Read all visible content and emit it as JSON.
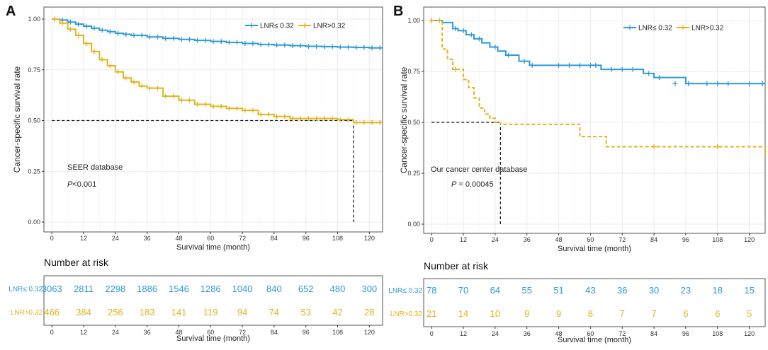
{
  "colors": {
    "low": "#2b9bd6",
    "high": "#e3b21c",
    "grid": "#ebebeb",
    "axis": "#333333",
    "text": "#222222",
    "panel_border": "#555555"
  },
  "chart_data": [
    {
      "type": "line",
      "panel_label": "A",
      "ylabel": "Cancer-specific survival rate",
      "xlabel": "Survival time (month)",
      "x_ticks": [
        0,
        12,
        24,
        36,
        48,
        60,
        72,
        84,
        96,
        108,
        120
      ],
      "x_tick_labels": [
        "0",
        "12",
        "24",
        "36",
        "48",
        "60",
        "72",
        "84",
        "96",
        "108",
        "120"
      ],
      "y_ticks": [
        0,
        0.25,
        0.5,
        0.75,
        1.0
      ],
      "y_tick_labels": [
        "0.00",
        "0.25",
        "0.50",
        "0.75",
        "1.00"
      ],
      "xlim": [
        0,
        125
      ],
      "ylim": [
        0,
        1.0
      ],
      "legend": [
        "LNR≤ 0.32",
        "LNR>0.32"
      ],
      "legend_position": "top-right",
      "annotations": {
        "database": "SEER database",
        "p_label": "P",
        "p_value": "<0.001"
      },
      "median_line": {
        "x": 114,
        "y": 0.5
      },
      "series": [
        {
          "name": "LNR≤ 0.32",
          "step": true,
          "x": [
            0,
            3,
            6,
            9,
            12,
            15,
            18,
            21,
            24,
            27,
            30,
            36,
            42,
            48,
            54,
            60,
            66,
            72,
            78,
            84,
            90,
            96,
            102,
            108,
            114,
            120,
            125
          ],
          "y": [
            1.0,
            0.995,
            0.985,
            0.975,
            0.965,
            0.955,
            0.945,
            0.938,
            0.93,
            0.925,
            0.92,
            0.912,
            0.905,
            0.9,
            0.895,
            0.89,
            0.885,
            0.88,
            0.875,
            0.872,
            0.869,
            0.866,
            0.864,
            0.862,
            0.86,
            0.858,
            0.857
          ],
          "censor_step": 3
        },
        {
          "name": "LNR>0.32",
          "step": true,
          "x": [
            0,
            3,
            6,
            9,
            12,
            15,
            18,
            21,
            24,
            27,
            30,
            33,
            36,
            42,
            48,
            54,
            60,
            66,
            72,
            78,
            84,
            90,
            96,
            102,
            108,
            114,
            120,
            125
          ],
          "y": [
            1.0,
            0.98,
            0.95,
            0.92,
            0.88,
            0.84,
            0.8,
            0.77,
            0.74,
            0.71,
            0.69,
            0.67,
            0.66,
            0.62,
            0.6,
            0.58,
            0.57,
            0.56,
            0.55,
            0.53,
            0.52,
            0.51,
            0.51,
            0.51,
            0.505,
            0.49,
            0.49,
            0.49
          ],
          "censor_step": 3
        }
      ],
      "risk_table": {
        "title": "Number at risk",
        "xlabel": "Survival time (month)",
        "rows": [
          {
            "label": "LNR≤ 0.32",
            "values": [
              "3063",
              "2811",
              "2298",
              "1886",
              "1546",
              "1286",
              "1040",
              "840",
              "652",
              "480",
              "300"
            ]
          },
          {
            "label": "LNR>0.32",
            "values": [
              "466",
              "384",
              "256",
              "183",
              "141",
              "119",
              "94",
              "74",
              "53",
              "42",
              "28"
            ]
          }
        ]
      }
    },
    {
      "type": "line",
      "panel_label": "B",
      "ylabel": "Cancer-specific survival rate",
      "xlabel": "Survival time (month)",
      "x_ticks": [
        0,
        12,
        24,
        36,
        48,
        60,
        72,
        84,
        96,
        108,
        120
      ],
      "x_tick_labels": [
        "0",
        "12",
        "24",
        "36",
        "48",
        "60",
        "72",
        "84",
        "96",
        "108",
        "120"
      ],
      "y_ticks": [
        0,
        0.25,
        0.5,
        0.75,
        1.0
      ],
      "y_tick_labels": [
        "0.00",
        "0.25",
        "0.50",
        "0.75",
        "1.00"
      ],
      "xlim": [
        -3,
        126
      ],
      "ylim": [
        0,
        1.0
      ],
      "legend": [
        "LNR≤ 0.32",
        "LNR>0.32"
      ],
      "legend_position": "top-right",
      "annotations": {
        "database": "Our cancer center database",
        "p_label": "P",
        "p_value": " = 0.00045"
      },
      "median_line": {
        "x": 26,
        "y": 0.5
      },
      "series": [
        {
          "name": "LNR≤ 0.32",
          "step": true,
          "x": [
            0,
            4,
            8,
            10,
            13,
            16,
            19,
            22,
            25,
            28,
            33,
            37,
            44,
            52,
            60,
            64,
            70,
            76,
            80,
            84,
            90,
            96,
            100,
            106,
            111,
            116,
            126
          ],
          "y": [
            1.0,
            0.99,
            0.96,
            0.95,
            0.93,
            0.91,
            0.89,
            0.87,
            0.85,
            0.83,
            0.8,
            0.78,
            0.78,
            0.78,
            0.78,
            0.76,
            0.76,
            0.76,
            0.74,
            0.72,
            0.72,
            0.69,
            0.69,
            0.69,
            0.69,
            0.69,
            0.69
          ],
          "censor": [
            [
              0,
              1.0
            ],
            [
              3,
              1.0
            ],
            [
              9,
              0.96
            ],
            [
              12,
              0.95
            ],
            [
              15,
              0.93
            ],
            [
              18,
              0.91
            ],
            [
              24,
              0.87
            ],
            [
              29,
              0.83
            ],
            [
              35,
              0.8
            ],
            [
              38,
              0.78
            ],
            [
              48,
              0.78
            ],
            [
              52,
              0.78
            ],
            [
              56,
              0.78
            ],
            [
              60,
              0.78
            ],
            [
              62,
              0.78
            ],
            [
              68,
              0.76
            ],
            [
              72,
              0.76
            ],
            [
              76,
              0.76
            ],
            [
              82,
              0.74
            ],
            [
              86,
              0.72
            ],
            [
              92,
              0.69
            ],
            [
              97,
              0.69
            ],
            [
              104,
              0.69
            ],
            [
              108,
              0.69
            ],
            [
              112,
              0.69
            ],
            [
              120,
              0.69
            ],
            [
              125,
              0.69
            ]
          ]
        },
        {
          "name": "LNR>0.32",
          "step": true,
          "x": [
            0,
            4,
            6,
            8,
            12,
            14,
            16,
            18,
            20,
            22,
            24,
            26,
            28,
            32,
            40,
            48,
            52,
            56,
            62,
            66,
            72,
            80,
            90,
            100,
            110,
            120,
            126
          ],
          "y": [
            1.0,
            0.86,
            0.81,
            0.76,
            0.71,
            0.67,
            0.62,
            0.57,
            0.54,
            0.52,
            0.5,
            0.49,
            0.49,
            0.49,
            0.49,
            0.49,
            0.49,
            0.43,
            0.43,
            0.38,
            0.38,
            0.38,
            0.38,
            0.38,
            0.38,
            0.38,
            0.33
          ],
          "censor": [
            [
              0,
              1.0
            ],
            [
              3,
              1.0
            ],
            [
              9,
              0.76
            ],
            [
              84,
              0.38
            ],
            [
              108,
              0.38
            ]
          ]
        }
      ],
      "risk_table": {
        "title": "Number at risk",
        "xlabel": "Survival time (month)",
        "rows": [
          {
            "label": "LNR≤ 0.32",
            "values": [
              "78",
              "70",
              "64",
              "55",
              "51",
              "43",
              "36",
              "30",
              "23",
              "18",
              "15"
            ]
          },
          {
            "label": "LNR>0.32",
            "values": [
              "21",
              "14",
              "10",
              "9",
              "9",
              "8",
              "7",
              "7",
              "6",
              "6",
              "5"
            ]
          }
        ]
      }
    }
  ]
}
